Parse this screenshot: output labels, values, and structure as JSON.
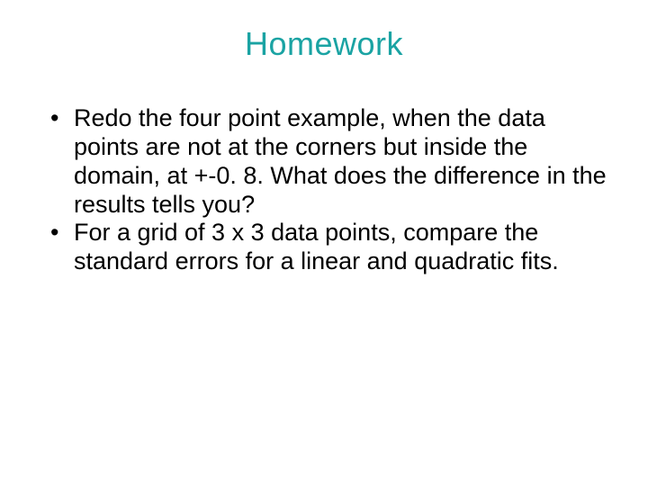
{
  "slide": {
    "title": "Homework",
    "title_color": "#1aa3a3",
    "title_fontsize": 36,
    "body_fontsize": 27,
    "body_color": "#000000",
    "background_color": "#ffffff",
    "bullets": [
      "Redo the four point example, when the data points are not at the corners but inside the domain, at +-0. 8. What does the difference in the results tells you?",
      "For a grid of 3 x 3 data points, compare the standard errors for a linear and quadratic fits."
    ]
  }
}
